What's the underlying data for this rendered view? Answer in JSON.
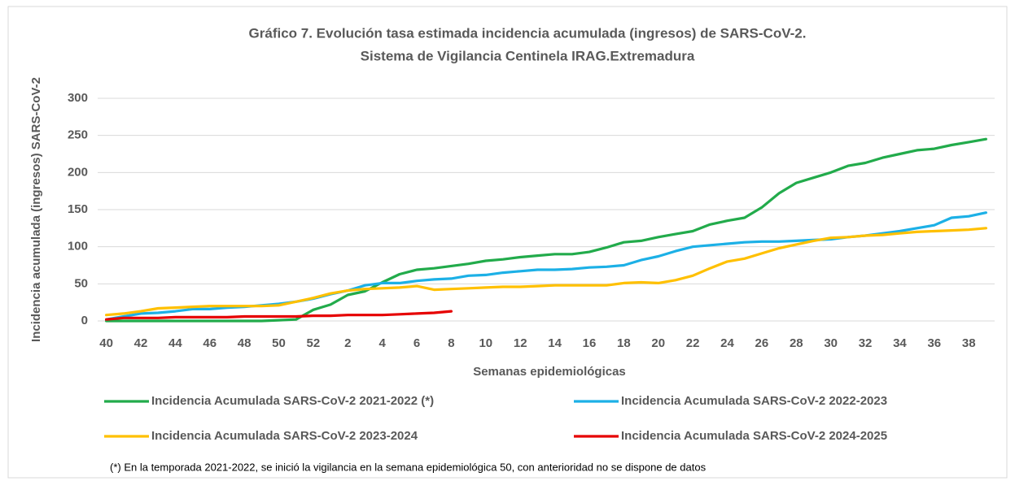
{
  "chart_data": {
    "type": "line",
    "title": "Gráfico 7. Evolución tasa estimada incidencia acumulada (ingresos) de SARS-CoV-2.",
    "subtitle": "Sistema de Vigilancia Centinela IRAG.Extremadura",
    "x_label": "Semanas epidemiológicas",
    "y_label": "Incidencia acumulada (ingresos) SARS-CoV-2",
    "note": "(*) En la temporada 2021-2022, se inició la vigilancia en la semana epidemiológica 50, con anterioridad no se dispone de datos",
    "categories": [
      "40",
      null,
      "42",
      null,
      "44",
      null,
      "46",
      null,
      "48",
      null,
      "50",
      null,
      "52",
      null,
      "2",
      null,
      "4",
      null,
      "6",
      null,
      "8",
      null,
      "10",
      null,
      "12",
      null,
      "14",
      null,
      "16",
      null,
      "18",
      null,
      "20",
      null,
      "22",
      null,
      "24",
      null,
      "26",
      null,
      "28",
      null,
      "30",
      null,
      "32",
      null,
      "34",
      null,
      "36",
      null,
      "38",
      null
    ],
    "ylim": [
      0,
      300
    ],
    "yticks": [
      0,
      50,
      100,
      150,
      200,
      250,
      300
    ],
    "grid": true,
    "legend": "bottom",
    "series": [
      {
        "name": "Incidencia Acumulada SARS-CoV-2 2021-2022 (*)",
        "color": "#22ab4b",
        "values": [
          0,
          0,
          0,
          0,
          0,
          0,
          0,
          0,
          0,
          0,
          1,
          2,
          15,
          22,
          35,
          40,
          52,
          63,
          69,
          71,
          74,
          77,
          81,
          83,
          86,
          88,
          90,
          90,
          93,
          99,
          106,
          108,
          113,
          117,
          121,
          130,
          135,
          139,
          153,
          172,
          186,
          193,
          200,
          209,
          213,
          220,
          225,
          230,
          232,
          237,
          241,
          245
        ]
      },
      {
        "name": "Incidencia Acumulada SARS-CoV-2 2022-2023",
        "color": "#1cb0e6",
        "values": [
          2,
          6,
          10,
          11,
          13,
          16,
          16,
          18,
          19,
          21,
          23,
          26,
          30,
          36,
          41,
          48,
          51,
          51,
          54,
          56,
          57,
          61,
          62,
          65,
          67,
          69,
          69,
          70,
          72,
          73,
          75,
          82,
          87,
          94,
          100,
          102,
          104,
          106,
          107,
          107,
          108,
          109,
          110,
          113,
          115,
          118,
          121,
          125,
          129,
          139,
          141,
          146
        ]
      },
      {
        "name": "Incidencia Acumulada SARS-CoV-2 2023-2024",
        "color": "#ffc000",
        "values": [
          8,
          10,
          13,
          17,
          18,
          19,
          20,
          20,
          20,
          20,
          21,
          26,
          31,
          37,
          41,
          43,
          44,
          45,
          47,
          42,
          43,
          44,
          45,
          46,
          46,
          47,
          48,
          48,
          48,
          48,
          51,
          52,
          51,
          55,
          61,
          71,
          80,
          84,
          91,
          98,
          103,
          108,
          112,
          113,
          115,
          116,
          118,
          120,
          121,
          122,
          123,
          125
        ]
      },
      {
        "name": "Incidencia Acumulada SARS-CoV-2 2024-2025",
        "color": "#e60000",
        "values": [
          2,
          4,
          4,
          4,
          5,
          5,
          5,
          5,
          6,
          6,
          6,
          6,
          7,
          7,
          8,
          8,
          8,
          9,
          10,
          11,
          13,
          null,
          null,
          null,
          null,
          null,
          null,
          null,
          null,
          null,
          null,
          null,
          null,
          null,
          null,
          null,
          null,
          null,
          null,
          null,
          null,
          null,
          null,
          null,
          null,
          null,
          null,
          null,
          null,
          null,
          null,
          null
        ]
      }
    ]
  }
}
